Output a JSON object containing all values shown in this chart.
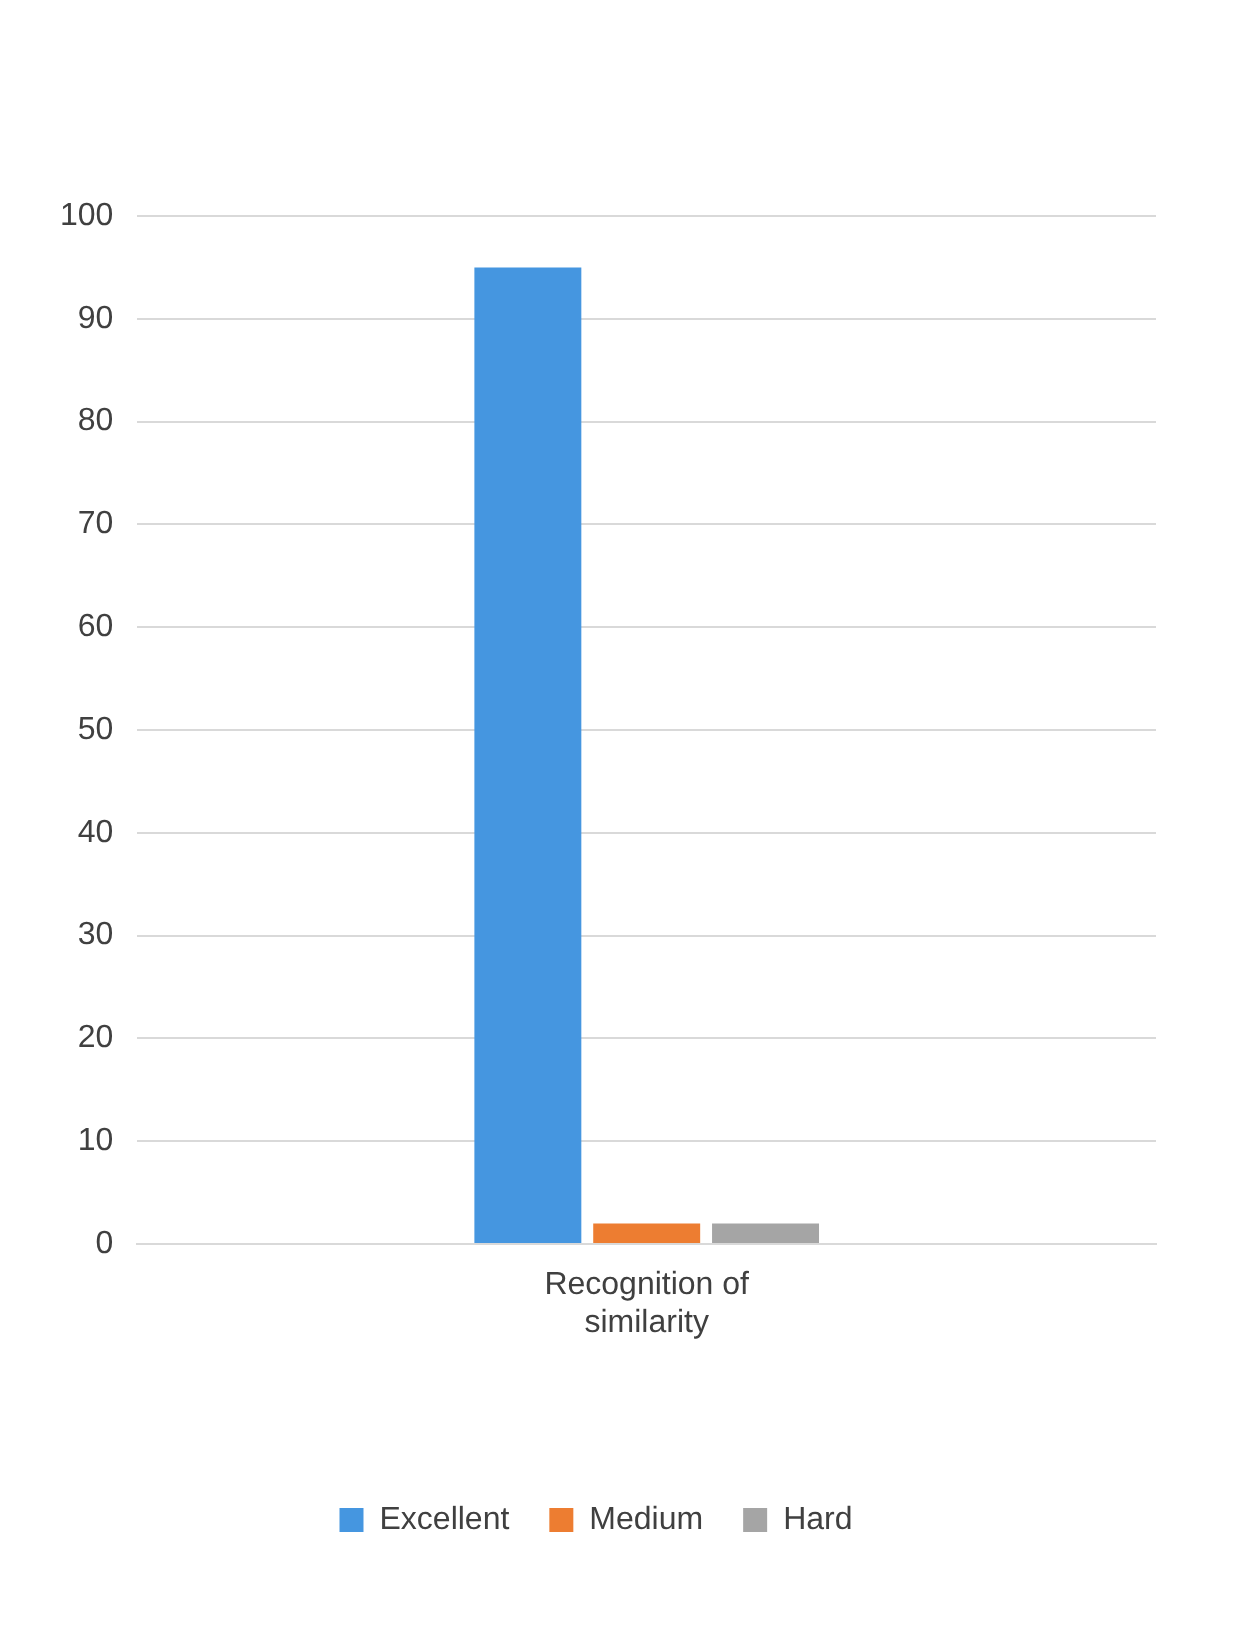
{
  "chart_data": {
    "type": "bar",
    "categories": [
      "Recognition of similarity"
    ],
    "series": [
      {
        "name": "Excellent",
        "color": "#4596e0",
        "values": [
          95
        ]
      },
      {
        "name": "Medium",
        "color": "#ed7d31",
        "values": [
          2
        ]
      },
      {
        "name": "Hard",
        "color": "#a5a5a5",
        "values": [
          2
        ]
      }
    ],
    "ylim": [
      0,
      100
    ],
    "yticks": [
      0,
      10,
      20,
      30,
      40,
      50,
      60,
      70,
      80,
      90,
      100
    ],
    "grid": "y",
    "legend": "bottom"
  }
}
